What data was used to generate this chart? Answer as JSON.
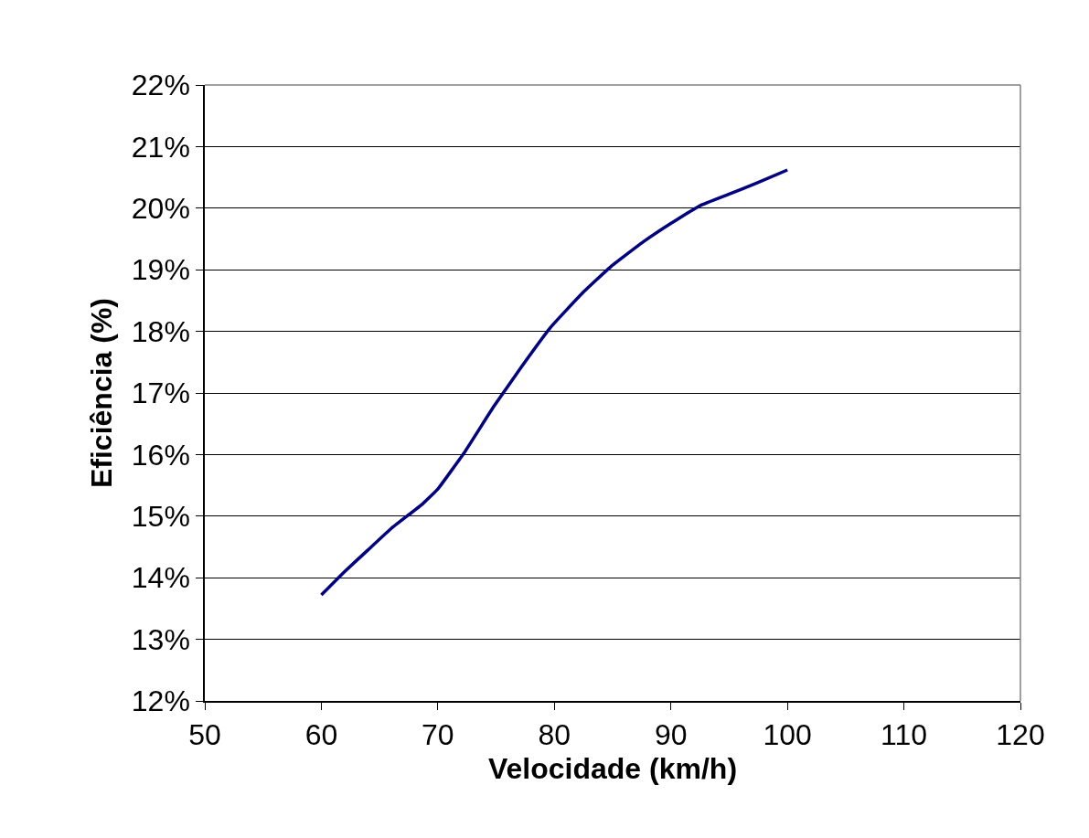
{
  "chart_data": {
    "type": "line",
    "xlabel": "Velocidade (km/h)",
    "ylabel": "Eficiência (%)",
    "x": [
      60,
      62,
      64,
      66,
      68.7,
      70,
      72.3,
      74.8,
      77.2,
      79.7,
      82.4,
      84.9,
      87.6,
      89.9,
      92.5,
      94.9,
      97.4,
      100
    ],
    "series": [
      {
        "color": "#000080",
        "values": [
          13.72,
          14.1,
          14.45,
          14.8,
          15.2,
          15.44,
          16.04,
          16.78,
          17.43,
          18.07,
          18.62,
          19.06,
          19.45,
          19.74,
          20.04,
          20.22,
          20.41,
          20.62
        ]
      }
    ],
    "xlim": [
      50,
      120
    ],
    "xticks": [
      50,
      60,
      70,
      80,
      90,
      100,
      110,
      120
    ],
    "ylim": [
      12,
      22
    ],
    "yticks": [
      {
        "value": 12,
        "label": "12%"
      },
      {
        "value": 13,
        "label": "13%"
      },
      {
        "value": 14,
        "label": "14%"
      },
      {
        "value": 15,
        "label": "15%"
      },
      {
        "value": 16,
        "label": "16%"
      },
      {
        "value": 17,
        "label": "17%"
      },
      {
        "value": 18,
        "label": "18%"
      },
      {
        "value": 19,
        "label": "19%"
      },
      {
        "value": 20,
        "label": "20%"
      },
      {
        "value": 21,
        "label": "21%"
      },
      {
        "value": 22,
        "label": "22%"
      }
    ],
    "grid": "y",
    "legend": false,
    "marker": "none",
    "line_style": "solid"
  }
}
